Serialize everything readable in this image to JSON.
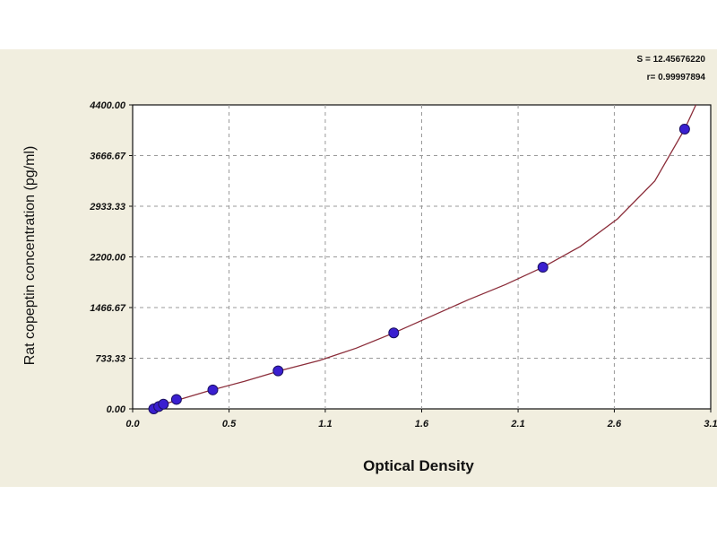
{
  "chart_data": {
    "type": "scatter",
    "xlabel": "Optical Density",
    "ylabel": "Rat copeptin concentration (pg/ml)",
    "xlim": [
      0.0,
      3.1
    ],
    "ylim": [
      0.0,
      4400.0
    ],
    "x_ticks": [
      "0.0",
      "0.5",
      "1.1",
      "1.6",
      "2.1",
      "2.6",
      "3.1"
    ],
    "x_tick_values": [
      0.0,
      0.517,
      1.033,
      1.55,
      2.067,
      2.583,
      3.1
    ],
    "y_ticks": [
      "0.00",
      "733.33",
      "1466.67",
      "2200.00",
      "2933.33",
      "3666.67",
      "4400.00"
    ],
    "y_tick_values": [
      0,
      733.33,
      1466.67,
      2200.0,
      2933.33,
      3666.67,
      4400.0
    ],
    "grid": true,
    "stats": [
      "S = 12.45676220",
      "r= 0.99997894"
    ],
    "series": [
      {
        "points": [
          {
            "x": 0.113,
            "y": 0
          },
          {
            "x": 0.14,
            "y": 34
          },
          {
            "x": 0.165,
            "y": 68
          },
          {
            "x": 0.235,
            "y": 137
          },
          {
            "x": 0.43,
            "y": 275
          },
          {
            "x": 0.78,
            "y": 550
          },
          {
            "x": 1.4,
            "y": 1100
          },
          {
            "x": 2.2,
            "y": 2050
          },
          {
            "x": 2.96,
            "y": 4050
          }
        ]
      }
    ],
    "fit_curve": {
      "points": [
        {
          "x": 0.1,
          "y": 0
        },
        {
          "x": 0.2,
          "y": 95
        },
        {
          "x": 0.4,
          "y": 255
        },
        {
          "x": 0.6,
          "y": 400
        },
        {
          "x": 0.8,
          "y": 560
        },
        {
          "x": 1.0,
          "y": 700
        },
        {
          "x": 1.2,
          "y": 880
        },
        {
          "x": 1.4,
          "y": 1100
        },
        {
          "x": 1.6,
          "y": 1340
        },
        {
          "x": 1.8,
          "y": 1580
        },
        {
          "x": 2.0,
          "y": 1800
        },
        {
          "x": 2.2,
          "y": 2050
        },
        {
          "x": 2.4,
          "y": 2350
        },
        {
          "x": 2.6,
          "y": 2750
        },
        {
          "x": 2.8,
          "y": 3300
        },
        {
          "x": 2.96,
          "y": 4050
        },
        {
          "x": 3.02,
          "y": 4400
        }
      ]
    },
    "colors": {
      "panel": "#f1eedf",
      "plot": "#ffffff",
      "grid": "#9a9a9a",
      "curve": "#8b2d3a",
      "point": "#3a1fd0",
      "point_edge": "#1a1060"
    }
  }
}
